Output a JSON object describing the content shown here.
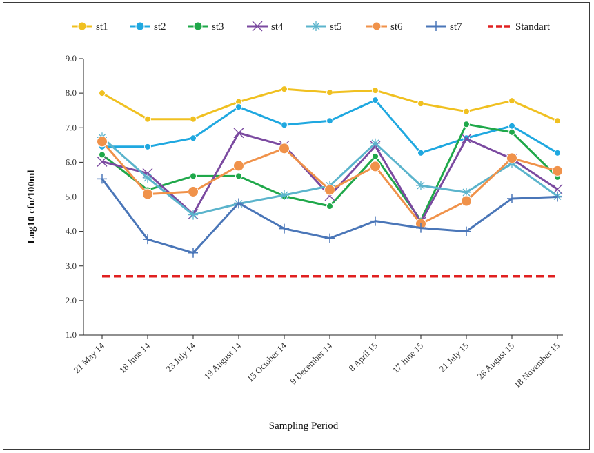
{
  "chart_data": {
    "type": "line",
    "title": "",
    "xlabel": "Sampling Period",
    "ylabel": "Log10   cfu/100ml",
    "ylim": [
      1.0,
      9.0
    ],
    "yticks": [
      "1.0",
      "2.0",
      "3.0",
      "4.0",
      "5.0",
      "6.0",
      "7.0",
      "8.0",
      "9.0"
    ],
    "legend_position": "top",
    "categories": [
      "21 May 14",
      "18 June 14",
      "23 July 14",
      "19 August 14",
      "15 October 14",
      "9 December 14",
      "8 April 15",
      "17 June 15",
      "21 July 15",
      "26 August 15",
      "18 November 15"
    ],
    "series": [
      {
        "name": "st1",
        "color": "#f0c020",
        "marker": "circle",
        "values": [
          8.0,
          7.25,
          7.25,
          7.75,
          8.12,
          8.02,
          8.08,
          7.7,
          7.47,
          7.78,
          7.2
        ]
      },
      {
        "name": "st2",
        "color": "#1fa8e0",
        "marker": "circle",
        "values": [
          6.45,
          6.45,
          6.7,
          7.6,
          7.08,
          7.2,
          7.8,
          6.27,
          6.7,
          7.05,
          6.27
        ]
      },
      {
        "name": "st3",
        "color": "#1fa84a",
        "marker": "circle",
        "values": [
          6.22,
          5.2,
          5.6,
          5.6,
          5.02,
          4.73,
          6.17,
          4.32,
          7.1,
          6.87,
          5.57
        ]
      },
      {
        "name": "st4",
        "color": "#7b4aa0",
        "marker": "x",
        "values": [
          6.02,
          5.68,
          4.5,
          6.85,
          6.48,
          5.03,
          6.47,
          4.27,
          6.68,
          6.1,
          5.22
        ]
      },
      {
        "name": "st5",
        "color": "#5bb4cc",
        "marker": "asterisk",
        "values": [
          6.72,
          5.55,
          4.48,
          4.8,
          5.05,
          5.32,
          6.55,
          5.33,
          5.13,
          5.97,
          5.02
        ]
      },
      {
        "name": "st6",
        "color": "#f0924a",
        "marker": "bigcircle",
        "values": [
          6.6,
          5.08,
          5.15,
          5.9,
          6.4,
          5.2,
          5.88,
          4.22,
          4.88,
          6.12,
          5.75
        ]
      },
      {
        "name": "st7",
        "color": "#4a76b8",
        "marker": "plus",
        "values": [
          5.52,
          3.77,
          3.38,
          4.82,
          4.08,
          3.8,
          4.3,
          4.1,
          4.0,
          4.95,
          5.0
        ]
      },
      {
        "name": "Standart",
        "color": "#e02020",
        "marker": "dash",
        "values": [
          2.7,
          2.7,
          2.7,
          2.7,
          2.7,
          2.7,
          2.7,
          2.7,
          2.7,
          2.7,
          2.7
        ]
      }
    ]
  }
}
